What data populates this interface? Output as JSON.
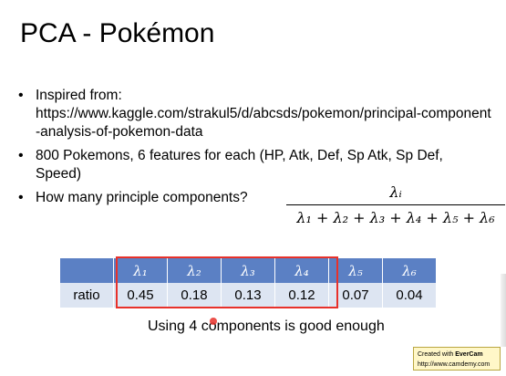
{
  "slide": {
    "title": "PCA - Pokémon",
    "bullets": [
      {
        "prefix": "Inspired from:",
        "url": "https://www.kaggle.com/strakul5/d/abcsds/pokemon/principal-component-analysis-of-pokemon-data"
      },
      {
        "text": "800 Pokemons, 6 features for each (HP, Atk, Def, Sp Atk, Sp Def, Speed)"
      },
      {
        "text": "How many principle components?"
      }
    ],
    "formula": {
      "numerator": "λᵢ",
      "denominator": "λ₁ + λ₂ + λ₃ + λ₄ + λ₅ + λ₆"
    },
    "table": {
      "headers": [
        "λ₁",
        "λ₂",
        "λ₃",
        "λ₄",
        "λ₅",
        "λ₆"
      ],
      "row_label": "ratio",
      "values": [
        "0.45",
        "0.18",
        "0.13",
        "0.12",
        "0.07",
        "0.04"
      ]
    },
    "caption": "Using 4 components is good enough"
  },
  "watermark": {
    "line1_prefix": "Created with ",
    "line1_brand": "EverCam",
    "line2": "http://www.camdemy.com"
  },
  "colors": {
    "table_header": "#5b80c4",
    "table_row": "#dde5f2",
    "highlight": "#e8312a"
  }
}
